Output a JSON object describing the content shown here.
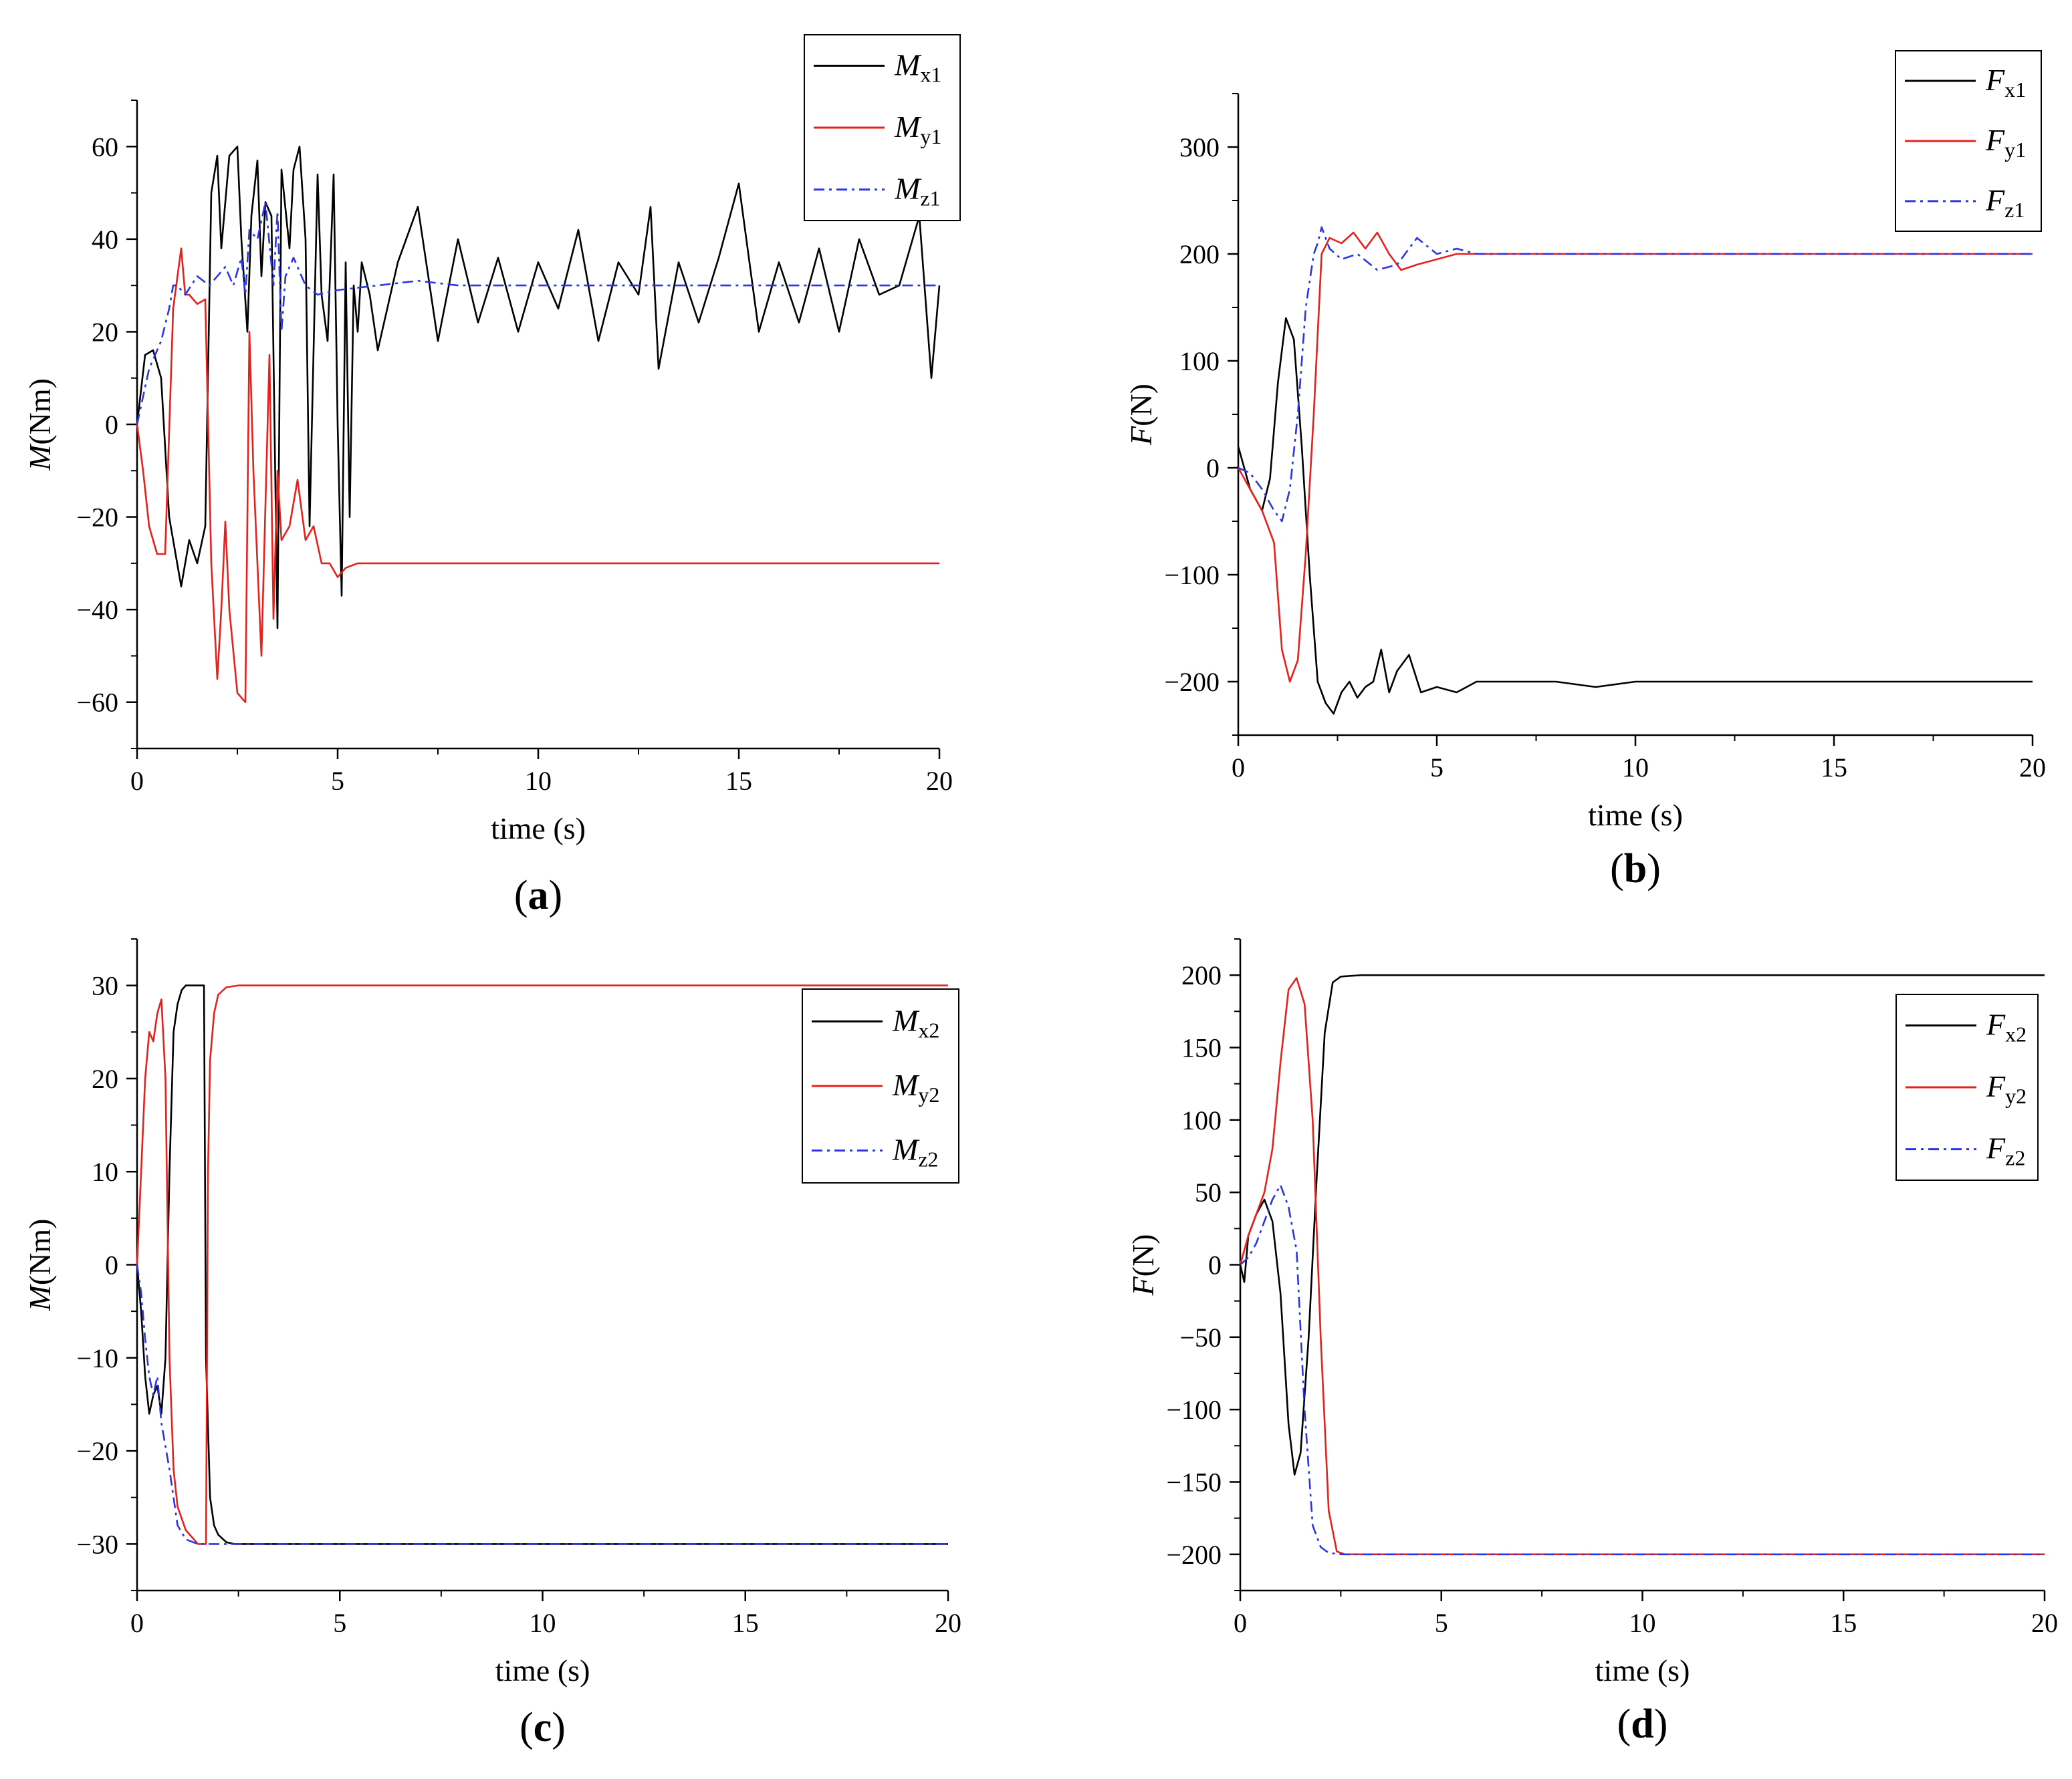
{
  "chart_data": [
    {
      "type": "line",
      "panel_label": "a",
      "xlabel": "time (s)",
      "ylabel_var": "M",
      "ylabel_unit": "(Nm)",
      "xlim": [
        0,
        20
      ],
      "ylim": [
        -70,
        70
      ],
      "x_ticks": [
        0,
        5,
        10,
        15,
        20
      ],
      "y_ticks": [
        -60,
        -40,
        -20,
        0,
        20,
        40,
        60
      ],
      "legend_position": "top-right",
      "series": [
        {
          "var": "M",
          "sub": "x1",
          "color": "#000000",
          "style": "solid",
          "x": [
            0,
            0.2,
            0.4,
            0.6,
            0.8,
            1.1,
            1.3,
            1.5,
            1.7,
            1.85,
            2.0,
            2.1,
            2.3,
            2.5,
            2.6,
            2.75,
            2.85,
            3.0,
            3.1,
            3.2,
            3.35,
            3.5,
            3.6,
            3.8,
            3.9,
            4.05,
            4.2,
            4.3,
            4.5,
            4.6,
            4.75,
            4.9,
            5.0,
            5.1,
            5.2,
            5.3,
            5.4,
            5.5,
            5.6,
            5.8,
            6.0,
            6.5,
            7.0,
            7.5,
            8.0,
            8.5,
            9.0,
            9.5,
            10.0,
            10.5,
            11.0,
            11.5,
            12.0,
            12.5,
            12.8,
            13.0,
            13.5,
            14.0,
            14.5,
            15.0,
            15.5,
            16.0,
            16.5,
            17.0,
            17.5,
            18.0,
            18.5,
            19.0,
            19.5,
            19.8,
            20.0
          ],
          "y": [
            0,
            15,
            16,
            10,
            -20,
            -35,
            -25,
            -30,
            -22,
            50,
            58,
            38,
            58,
            60,
            40,
            20,
            45,
            57,
            32,
            48,
            45,
            -44,
            55,
            38,
            55,
            60,
            40,
            -22,
            54,
            28,
            18,
            54,
            0,
            -37,
            35,
            -20,
            30,
            20,
            35,
            28,
            16,
            35,
            47,
            18,
            40,
            22,
            36,
            20,
            35,
            25,
            42,
            18,
            35,
            28,
            47,
            12,
            35,
            22,
            36,
            52,
            20,
            35,
            22,
            38,
            20,
            40,
            28,
            30,
            45,
            10,
            30
          ]
        },
        {
          "var": "M",
          "sub": "y1",
          "color": "#e8201c",
          "style": "solid",
          "x": [
            0,
            0.15,
            0.3,
            0.5,
            0.7,
            0.9,
            1.1,
            1.2,
            1.3,
            1.5,
            1.7,
            1.85,
            2.0,
            2.1,
            2.2,
            2.3,
            2.5,
            2.7,
            2.8,
            2.9,
            3.1,
            3.3,
            3.4,
            3.5,
            3.6,
            3.8,
            4.0,
            4.2,
            4.4,
            4.6,
            4.8,
            5.0,
            5.2,
            5.5,
            6.0,
            7.0,
            8.0,
            9.0,
            10.0,
            11.0,
            12.0,
            13.0,
            14.0,
            15.0,
            16.0,
            17.0,
            18.0,
            19.0,
            20.0
          ],
          "y": [
            0,
            -10,
            -22,
            -28,
            -28,
            25,
            38,
            28,
            28,
            26,
            27,
            -30,
            -55,
            -40,
            -21,
            -40,
            -58,
            -60,
            20,
            -10,
            -50,
            15,
            -42,
            -10,
            -25,
            -22,
            -12,
            -25,
            -22,
            -30,
            -30,
            -33,
            -31,
            -30,
            -30,
            -30,
            -30,
            -30,
            -30,
            -30,
            -30,
            -30,
            -30,
            -30,
            -30,
            -30,
            -30,
            -30,
            -30
          ]
        },
        {
          "var": "M",
          "sub": "z1",
          "color": "#2b35e6",
          "style": "dashdot",
          "x": [
            0,
            0.3,
            0.6,
            0.8,
            0.9,
            1.0,
            1.2,
            1.5,
            1.8,
            2.0,
            2.2,
            2.4,
            2.6,
            2.7,
            2.8,
            3.0,
            3.2,
            3.4,
            3.5,
            3.6,
            3.7,
            3.9,
            4.2,
            4.5,
            5.0,
            6.0,
            7.0,
            8.0,
            10.0,
            12.0,
            14.0,
            16.0,
            18.0,
            20.0
          ],
          "y": [
            0,
            12,
            18,
            25,
            30,
            30,
            28,
            32,
            30,
            32,
            34,
            30,
            36,
            28,
            42,
            40,
            48,
            30,
            46,
            20,
            32,
            36,
            30,
            28,
            29,
            30,
            31,
            30,
            30,
            30,
            30,
            30,
            30,
            30
          ]
        }
      ]
    },
    {
      "type": "line",
      "panel_label": "b",
      "xlabel": "time (s)",
      "ylabel_var": "F",
      "ylabel_unit": "(N)",
      "xlim": [
        0,
        20
      ],
      "ylim": [
        -250,
        350
      ],
      "x_ticks": [
        0,
        5,
        10,
        15,
        20
      ],
      "y_ticks": [
        -200,
        -100,
        0,
        100,
        200,
        300
      ],
      "legend_position": "top-right",
      "series": [
        {
          "var": "F",
          "sub": "x1",
          "color": "#000000",
          "style": "solid",
          "x": [
            0,
            0.3,
            0.6,
            0.8,
            1.0,
            1.2,
            1.4,
            1.6,
            1.8,
            2.0,
            2.2,
            2.4,
            2.6,
            2.8,
            3.0,
            3.2,
            3.4,
            3.6,
            3.8,
            4.0,
            4.3,
            4.6,
            5.0,
            5.5,
            6.0,
            7.0,
            8.0,
            9.0,
            10.0,
            11.0,
            12.0,
            13.0,
            14.0,
            15.0,
            16.0,
            17.0,
            18.0,
            19.0,
            20.0
          ],
          "y": [
            20,
            -20,
            -40,
            -10,
            80,
            140,
            120,
            20,
            -100,
            -200,
            -220,
            -230,
            -210,
            -200,
            -215,
            -205,
            -200,
            -170,
            -210,
            -190,
            -175,
            -210,
            -205,
            -210,
            -200,
            -200,
            -200,
            -205,
            -200,
            -200,
            -200,
            -200,
            -200,
            -200,
            -200,
            -200,
            -200,
            -200,
            -200
          ]
        },
        {
          "var": "F",
          "sub": "y1",
          "color": "#e8201c",
          "style": "solid",
          "x": [
            0,
            0.3,
            0.6,
            0.9,
            1.1,
            1.3,
            1.5,
            1.7,
            1.9,
            2.1,
            2.3,
            2.6,
            2.9,
            3.2,
            3.5,
            3.8,
            4.1,
            4.5,
            5.0,
            5.5,
            6.0,
            7.0,
            8.0,
            10.0,
            12.0,
            14.0,
            16.0,
            18.0,
            20.0
          ],
          "y": [
            0,
            -20,
            -40,
            -70,
            -170,
            -200,
            -180,
            -80,
            50,
            200,
            215,
            210,
            220,
            205,
            220,
            200,
            185,
            190,
            195,
            200,
            200,
            200,
            200,
            200,
            200,
            200,
            200,
            200,
            200
          ]
        },
        {
          "var": "F",
          "sub": "z1",
          "color": "#2b35e6",
          "style": "dashdot",
          "x": [
            0,
            0.3,
            0.6,
            0.9,
            1.1,
            1.3,
            1.5,
            1.7,
            1.9,
            2.0,
            2.1,
            2.3,
            2.6,
            3.0,
            3.5,
            4.0,
            4.5,
            5.0,
            5.5,
            6.0,
            8.0,
            10.0,
            12.0,
            14.0,
            16.0,
            18.0,
            20.0
          ],
          "y": [
            0,
            -5,
            -20,
            -40,
            -50,
            -20,
            50,
            150,
            200,
            210,
            225,
            205,
            195,
            200,
            185,
            190,
            215,
            200,
            205,
            200,
            200,
            200,
            200,
            200,
            200,
            200,
            200
          ]
        }
      ]
    },
    {
      "type": "line",
      "panel_label": "c",
      "xlabel": "time (s)",
      "ylabel_var": "M",
      "ylabel_unit": "(Nm)",
      "xlim": [
        0,
        20
      ],
      "ylim": [
        -35,
        35
      ],
      "x_ticks": [
        0,
        5,
        10,
        15,
        20
      ],
      "y_ticks": [
        -30,
        -20,
        -10,
        0,
        10,
        20,
        30
      ],
      "legend_position": "top-right",
      "series": [
        {
          "var": "M",
          "sub": "x2",
          "color": "#000000",
          "style": "solid",
          "x": [
            0,
            0.1,
            0.2,
            0.3,
            0.4,
            0.5,
            0.6,
            0.7,
            0.8,
            0.9,
            1.0,
            1.1,
            1.2,
            1.3,
            1.5,
            1.6,
            1.65,
            1.7,
            1.8,
            1.9,
            2.0,
            2.2,
            2.4,
            3.0,
            5.0,
            10.0,
            15.0,
            20.0
          ],
          "y": [
            0,
            -5,
            -12,
            -16,
            -14,
            -13,
            -16,
            -10,
            10,
            25,
            28,
            29.5,
            30,
            30,
            30,
            30,
            30,
            -10,
            -25,
            -28,
            -29,
            -29.8,
            -30,
            -30,
            -30,
            -30,
            -30,
            -30
          ]
        },
        {
          "var": "M",
          "sub": "y2",
          "color": "#e8201c",
          "style": "solid",
          "x": [
            0,
            0.1,
            0.2,
            0.3,
            0.4,
            0.5,
            0.6,
            0.7,
            0.8,
            0.9,
            1.0,
            1.2,
            1.5,
            1.7,
            1.75,
            1.8,
            1.9,
            2.0,
            2.2,
            2.5,
            3.0,
            5.0,
            10.0,
            15.0,
            20.0
          ],
          "y": [
            0,
            10,
            20,
            25,
            24,
            27,
            28.5,
            20,
            -10,
            -22,
            -26,
            -28.5,
            -30,
            -30,
            10,
            22,
            27,
            29,
            29.8,
            30,
            30,
            30,
            30,
            30,
            30
          ]
        },
        {
          "var": "M",
          "sub": "z2",
          "color": "#2b35e6",
          "style": "dashdot",
          "x": [
            0,
            0.1,
            0.2,
            0.3,
            0.4,
            0.5,
            0.6,
            0.8,
            1.0,
            1.2,
            1.5,
            2.0,
            5.0,
            10.0,
            15.0,
            20.0
          ],
          "y": [
            0,
            -3,
            -8,
            -12,
            -14,
            -12,
            -17,
            -22,
            -28,
            -29.5,
            -30,
            -30,
            -30,
            -30,
            -30,
            -30
          ]
        }
      ]
    },
    {
      "type": "line",
      "panel_label": "d",
      "xlabel": "time (s)",
      "ylabel_var": "F",
      "ylabel_unit": "(N)",
      "xlim": [
        0,
        20
      ],
      "ylim": [
        -225,
        225
      ],
      "x_ticks": [
        0,
        5,
        10,
        15,
        20
      ],
      "y_ticks": [
        -200,
        -150,
        -100,
        -50,
        0,
        50,
        100,
        150,
        200
      ],
      "legend_position": "right",
      "series": [
        {
          "var": "F",
          "sub": "x2",
          "color": "#000000",
          "style": "solid",
          "x": [
            0,
            0.1,
            0.2,
            0.4,
            0.6,
            0.8,
            1.0,
            1.2,
            1.35,
            1.5,
            1.7,
            1.9,
            2.1,
            2.3,
            2.5,
            3.0,
            5.0,
            10.0,
            15.0,
            20.0
          ],
          "y": [
            0,
            -12,
            20,
            35,
            45,
            30,
            -20,
            -110,
            -145,
            -130,
            -50,
            60,
            160,
            195,
            199,
            200,
            200,
            200,
            200,
            200
          ]
        },
        {
          "var": "F",
          "sub": "y2",
          "color": "#e8201c",
          "style": "solid",
          "x": [
            0,
            0.2,
            0.4,
            0.6,
            0.8,
            1.0,
            1.2,
            1.4,
            1.6,
            1.8,
            2.0,
            2.2,
            2.4,
            2.6,
            3.0,
            5.0,
            10.0,
            15.0,
            20.0
          ],
          "y": [
            0,
            20,
            35,
            50,
            80,
            140,
            190,
            198,
            180,
            100,
            -50,
            -170,
            -198,
            -200,
            -200,
            -200,
            -200,
            -200,
            -200
          ]
        },
        {
          "var": "F",
          "sub": "z2",
          "color": "#2b35e6",
          "style": "dashdot",
          "x": [
            0,
            0.2,
            0.4,
            0.6,
            0.8,
            1.0,
            1.2,
            1.4,
            1.6,
            1.8,
            2.0,
            2.2,
            2.5,
            3.0,
            5.0,
            10.0,
            15.0,
            20.0
          ],
          "y": [
            0,
            5,
            15,
            30,
            45,
            55,
            40,
            10,
            -100,
            -180,
            -195,
            -199,
            -200,
            -200,
            -200,
            -200,
            -200,
            -200
          ]
        }
      ]
    }
  ]
}
